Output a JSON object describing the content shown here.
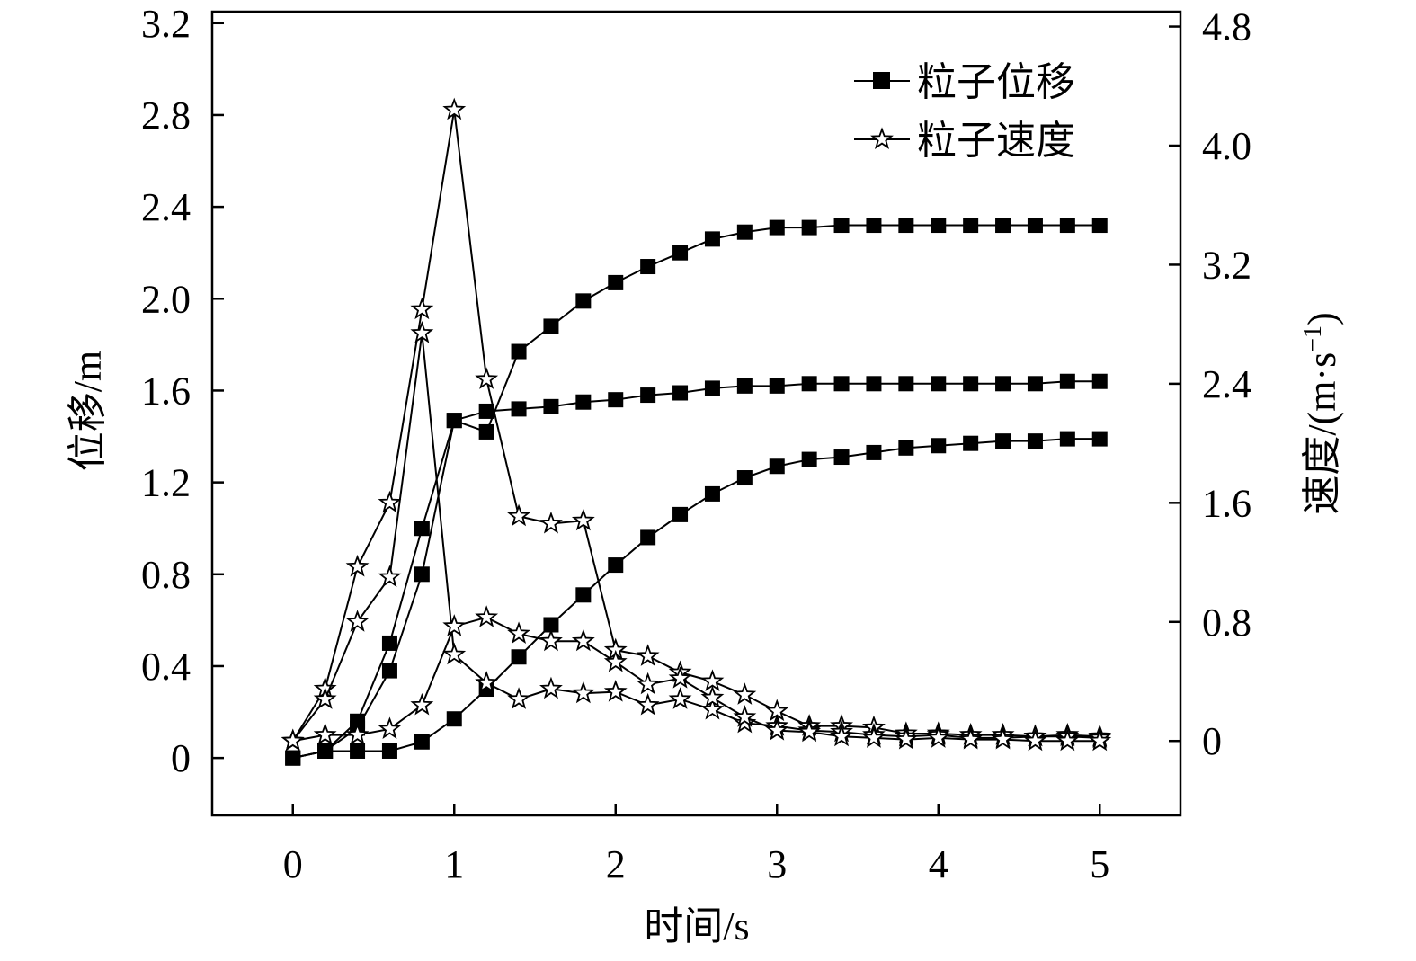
{
  "chart_data": {
    "type": "line",
    "xlabel": "时间/s",
    "ylabel_left": "位移/m",
    "ylabel_right": "速度/(m·s⁻¹)",
    "ylabel_right_base": "速度/(m·s",
    "ylabel_right_sup": "−1",
    "ylabel_right_close": ")",
    "xlim": [
      -0.5,
      5.5
    ],
    "ylim_left": [
      -0.25,
      3.25
    ],
    "ylim_right": [
      -0.5,
      4.9
    ],
    "x_ticks": [
      0,
      1,
      2,
      3,
      4,
      5
    ],
    "x_tick_labels": [
      "0",
      "1",
      "2",
      "3",
      "4",
      "5"
    ],
    "y_left_ticks": [
      0,
      0.4,
      0.8,
      1.2,
      1.6,
      2.0,
      2.4,
      2.8,
      3.2
    ],
    "y_left_tick_labels": [
      "0",
      "0.4",
      "0.8",
      "1.2",
      "1.6",
      "2.0",
      "2.4",
      "2.8",
      "3.2"
    ],
    "y_right_ticks": [
      0,
      0.8,
      1.6,
      2.4,
      3.2,
      4.0,
      4.8
    ],
    "y_right_tick_labels": [
      "0",
      "0.8",
      "1.6",
      "2.4",
      "3.2",
      "4.0",
      "4.8"
    ],
    "grid": false,
    "legend_position": "top-right",
    "legend": [
      {
        "label": "粒子位移",
        "marker": "square"
      },
      {
        "label": "粒子速度",
        "marker": "star"
      }
    ],
    "x": [
      0,
      0.2,
      0.4,
      0.6,
      0.8,
      1.0,
      1.2,
      1.4,
      1.6,
      1.8,
      2.0,
      2.2,
      2.4,
      2.6,
      2.8,
      3.0,
      3.2,
      3.4,
      3.6,
      3.8,
      4.0,
      4.2,
      4.4,
      4.6,
      4.8,
      5.0
    ],
    "series": [
      {
        "group": "displacement",
        "axis": "left",
        "marker": "square",
        "values": [
          0.0,
          0.03,
          0.16,
          0.5,
          1.0,
          1.47,
          1.51,
          1.52,
          1.53,
          1.55,
          1.56,
          1.58,
          1.59,
          1.61,
          1.62,
          1.62,
          1.63,
          1.63,
          1.63,
          1.63,
          1.63,
          1.63,
          1.63,
          1.63,
          1.64,
          1.64
        ]
      },
      {
        "group": "displacement",
        "axis": "left",
        "marker": "square",
        "values": [
          0.0,
          0.03,
          0.13,
          0.38,
          0.8,
          1.47,
          1.42,
          1.77,
          1.88,
          1.99,
          2.07,
          2.14,
          2.2,
          2.26,
          2.29,
          2.31,
          2.31,
          2.32,
          2.32,
          2.32,
          2.32,
          2.32,
          2.32,
          2.32,
          2.32,
          2.32
        ]
      },
      {
        "group": "displacement",
        "axis": "left",
        "marker": "square",
        "values": [
          0.0,
          0.03,
          0.03,
          0.03,
          0.07,
          0.17,
          0.3,
          0.44,
          0.58,
          0.71,
          0.84,
          0.96,
          1.06,
          1.15,
          1.22,
          1.27,
          1.3,
          1.31,
          1.33,
          1.35,
          1.36,
          1.37,
          1.38,
          1.38,
          1.39,
          1.39
        ]
      },
      {
        "group": "velocity",
        "axis": "right",
        "marker": "star",
        "values": [
          0.0,
          0.35,
          1.17,
          1.6,
          2.9,
          4.24,
          2.43,
          1.51,
          1.46,
          1.48,
          0.61,
          0.57,
          0.46,
          0.4,
          0.31,
          0.2,
          0.1,
          0.1,
          0.09,
          0.05,
          0.05,
          0.04,
          0.04,
          0.03,
          0.04,
          0.03
        ]
      },
      {
        "group": "velocity",
        "axis": "right",
        "marker": "star",
        "values": [
          0.0,
          0.28,
          0.8,
          1.1,
          2.74,
          0.58,
          0.39,
          0.28,
          0.35,
          0.32,
          0.33,
          0.24,
          0.28,
          0.21,
          0.12,
          0.1,
          0.07,
          0.06,
          0.04,
          0.03,
          0.04,
          0.02,
          0.02,
          0.03,
          0.03,
          0.02
        ]
      },
      {
        "group": "velocity",
        "axis": "right",
        "marker": "star",
        "values": [
          0.0,
          0.04,
          0.04,
          0.08,
          0.24,
          0.77,
          0.83,
          0.72,
          0.67,
          0.67,
          0.53,
          0.38,
          0.42,
          0.29,
          0.16,
          0.07,
          0.06,
          0.03,
          0.02,
          0.01,
          0.02,
          0.01,
          0.01,
          0.0,
          0.0,
          0.0
        ]
      }
    ]
  }
}
